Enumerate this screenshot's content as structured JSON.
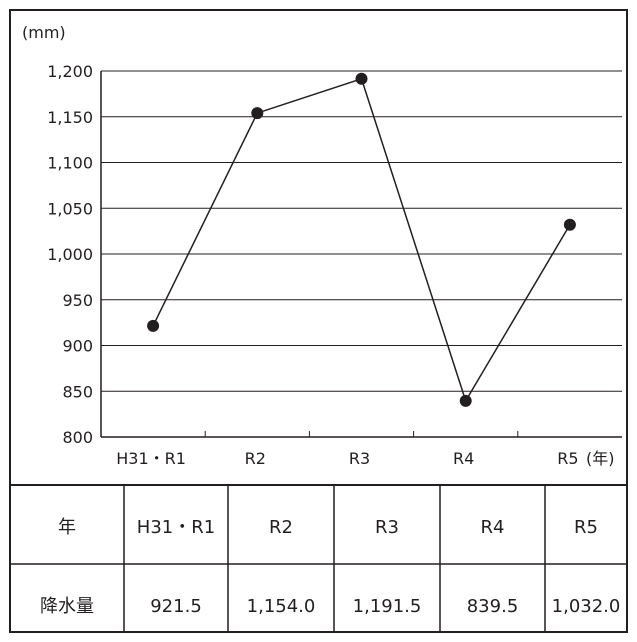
{
  "chart_data": {
    "type": "line",
    "y_unit": "(mm)",
    "x_unit": "(年)",
    "ylim": [
      800,
      1200
    ],
    "y_ticks": [
      800,
      850,
      900,
      950,
      1000,
      1050,
      1100,
      1150,
      1200
    ],
    "y_tick_labels": [
      "800",
      "850",
      "900",
      "950",
      "1,000",
      "1,050",
      "1,100",
      "1,150",
      "1,200"
    ],
    "grid": "horizontal",
    "categories": [
      "H31・R1",
      "R2",
      "R3",
      "R4",
      "R5"
    ],
    "values": [
      921.5,
      1154.0,
      1191.5,
      839.5,
      1032.0
    ]
  },
  "table": {
    "row_headers": [
      "年",
      "降水量"
    ],
    "years": [
      "H31・R1",
      "R2",
      "R3",
      "R4",
      "R5"
    ],
    "precipitation": [
      "921.5",
      "1,154.0",
      "1,191.5",
      "839.5",
      "1,032.0"
    ]
  }
}
